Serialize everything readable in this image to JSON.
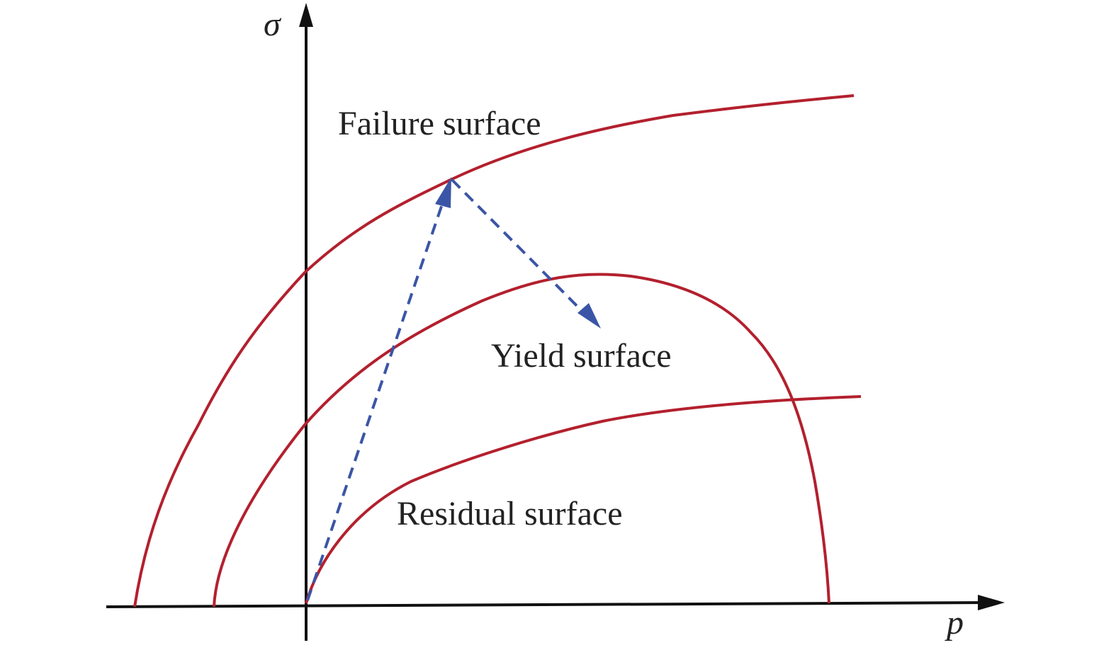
{
  "axes": {
    "x_label": "p",
    "y_label": "σ"
  },
  "labels": {
    "failure": "Failure surface",
    "yield": "Yield surface",
    "residual": "Residual surface"
  },
  "colors": {
    "surface": "#b3202e",
    "stress_path": "#3b55a6",
    "axis": "#111111"
  }
}
